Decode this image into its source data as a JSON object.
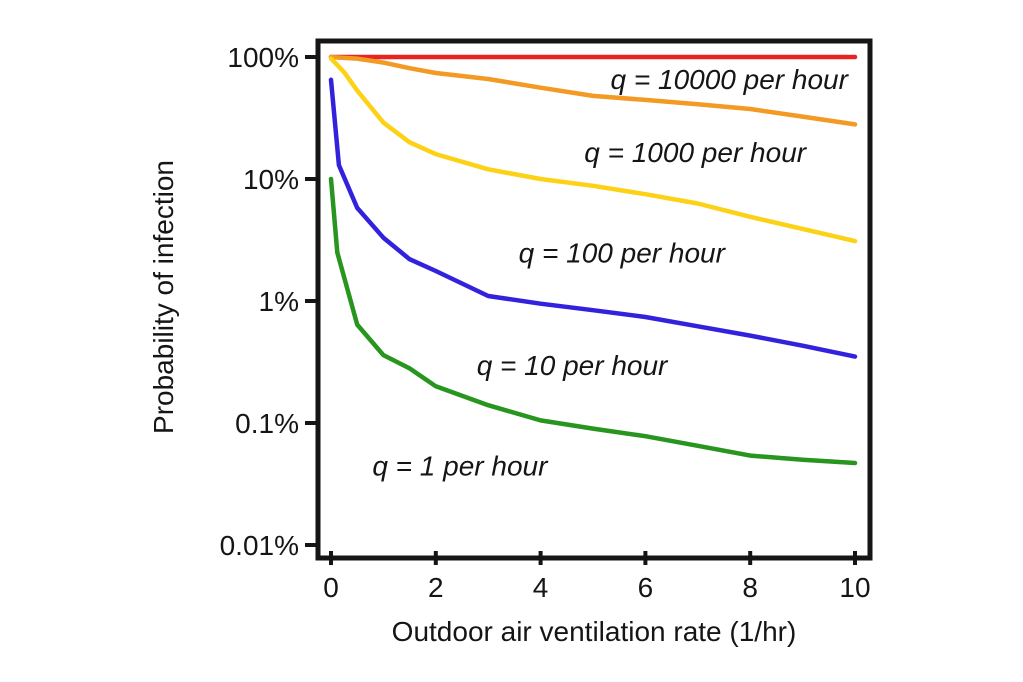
{
  "chart_data": {
    "type": "line",
    "title": "",
    "xlabel": "Outdoor air ventilation rate (1/hr)",
    "ylabel": "Probability of infection",
    "x_axis": {
      "min": 0,
      "max": 10,
      "ticks": [
        0,
        2,
        4,
        6,
        8,
        10
      ],
      "scale": "linear"
    },
    "y_axis": {
      "scale": "log",
      "unit": "percent",
      "min": 0.01,
      "max": 100,
      "ticks": [
        {
          "value": 100,
          "label": "100%"
        },
        {
          "value": 10,
          "label": "10%"
        },
        {
          "value": 1,
          "label": "1%"
        },
        {
          "value": 0.1,
          "label": "0.1%"
        },
        {
          "value": 0.01,
          "label": "0.01%"
        }
      ]
    },
    "grid": false,
    "legend_position": "inline-annotations",
    "series": [
      {
        "name": "q = 10000 per hour",
        "color": "#e82320",
        "points": [
          [
            0,
            100
          ],
          [
            10,
            100
          ]
        ]
      },
      {
        "name": "q = 1000 per hour",
        "color": "#f39a24",
        "points": [
          [
            0,
            99.9
          ],
          [
            0.5,
            97
          ],
          [
            1,
            90
          ],
          [
            1.5,
            81
          ],
          [
            2,
            74
          ],
          [
            3,
            66
          ],
          [
            4,
            56
          ],
          [
            5,
            48
          ],
          [
            6,
            44.5
          ],
          [
            7,
            41
          ],
          [
            8,
            37.5
          ],
          [
            9,
            32.5
          ],
          [
            10,
            28
          ]
        ]
      },
      {
        "name": "q = 100 per hour",
        "color": "#fcd116",
        "points": [
          [
            0,
            97
          ],
          [
            0.25,
            75
          ],
          [
            0.5,
            53
          ],
          [
            1,
            29
          ],
          [
            1.5,
            20
          ],
          [
            2,
            16
          ],
          [
            3,
            12
          ],
          [
            4,
            10
          ],
          [
            5,
            8.8
          ],
          [
            6,
            7.5
          ],
          [
            7,
            6.3
          ],
          [
            8,
            4.9
          ],
          [
            9,
            3.9
          ],
          [
            10,
            3.1
          ]
        ]
      },
      {
        "name": "q = 10 per hour",
        "color": "#3222dd",
        "points": [
          [
            0,
            65
          ],
          [
            0.15,
            13
          ],
          [
            0.5,
            5.8
          ],
          [
            1,
            3.3
          ],
          [
            1.5,
            2.2
          ],
          [
            2,
            1.76
          ],
          [
            3,
            1.1
          ],
          [
            4,
            0.95
          ],
          [
            5,
            0.84
          ],
          [
            6,
            0.74
          ],
          [
            7,
            0.62
          ],
          [
            8,
            0.52
          ],
          [
            9,
            0.43
          ],
          [
            10,
            0.35
          ]
        ]
      },
      {
        "name": "q = 1 per hour",
        "color": "#28951f",
        "points": [
          [
            0,
            10
          ],
          [
            0.12,
            2.5
          ],
          [
            0.5,
            0.64
          ],
          [
            1,
            0.36
          ],
          [
            1.5,
            0.28
          ],
          [
            2,
            0.2
          ],
          [
            3,
            0.14
          ],
          [
            4,
            0.105
          ],
          [
            5,
            0.09
          ],
          [
            6,
            0.078
          ],
          [
            7,
            0.065
          ],
          [
            8,
            0.054
          ],
          [
            9,
            0.05
          ],
          [
            10,
            0.047
          ]
        ]
      }
    ],
    "annotations": [
      {
        "text": "q = 10000 per hour",
        "x": 7.6,
        "y": 66
      },
      {
        "text": "q = 1000 per hour",
        "x": 6.95,
        "y": 16.6
      },
      {
        "text": "q = 100 per hour",
        "x": 5.55,
        "y": 2.5
      },
      {
        "text": "q = 10 per hour",
        "x": 4.6,
        "y": 0.3
      },
      {
        "text": "q = 1 per hour",
        "x": 2.46,
        "y": 0.045
      }
    ]
  },
  "colors": {
    "background": "#ffffff",
    "frame": "#151515",
    "text": "#151515"
  }
}
